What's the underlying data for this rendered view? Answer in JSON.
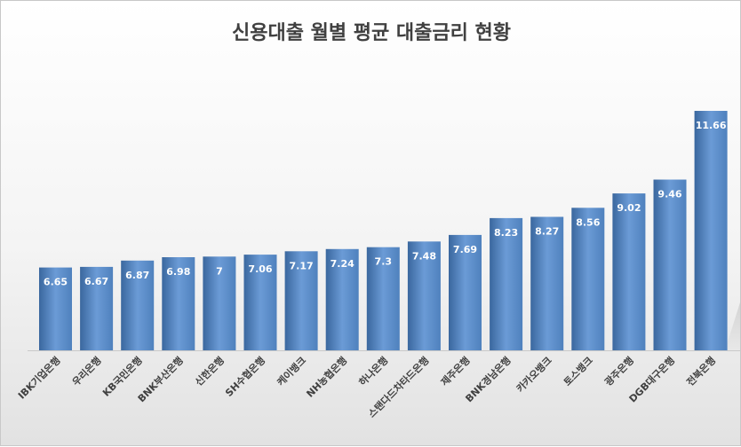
{
  "chart_data": {
    "type": "bar",
    "title": "신용대출 월별 평균 대출금리 현황",
    "xlabel": "",
    "ylabel": "",
    "categories": [
      "IBK기업은행",
      "우리은행",
      "KB국민은행",
      "BNK부산은행",
      "신한은행",
      "SH수협은행",
      "케이뱅크",
      "NH농협은행",
      "하나은행",
      "스탠다드차타드은행",
      "제주은행",
      "BNK경남은행",
      "카카오뱅크",
      "토스뱅크",
      "광주은행",
      "DGB대구은행",
      "전북은행"
    ],
    "values": [
      6.65,
      6.67,
      6.87,
      6.98,
      7,
      7.06,
      7.17,
      7.24,
      7.3,
      7.48,
      7.69,
      8.23,
      8.27,
      8.56,
      9.02,
      9.46,
      11.66
    ],
    "value_labels": [
      "6.65",
      "6.67",
      "6.87",
      "6.98",
      "7",
      "7.06",
      "7.17",
      "7.24",
      "7.3",
      "7.48",
      "7.69",
      "8.23",
      "8.27",
      "8.56",
      "9.02",
      "9.46",
      "11.66"
    ],
    "ylim": [
      4,
      12.2
    ],
    "grid": false,
    "legend": "none",
    "bar_color": "#4f81bd",
    "bar_color_light": "#6b9bd6",
    "bar_color_dark": "#3a679e"
  }
}
